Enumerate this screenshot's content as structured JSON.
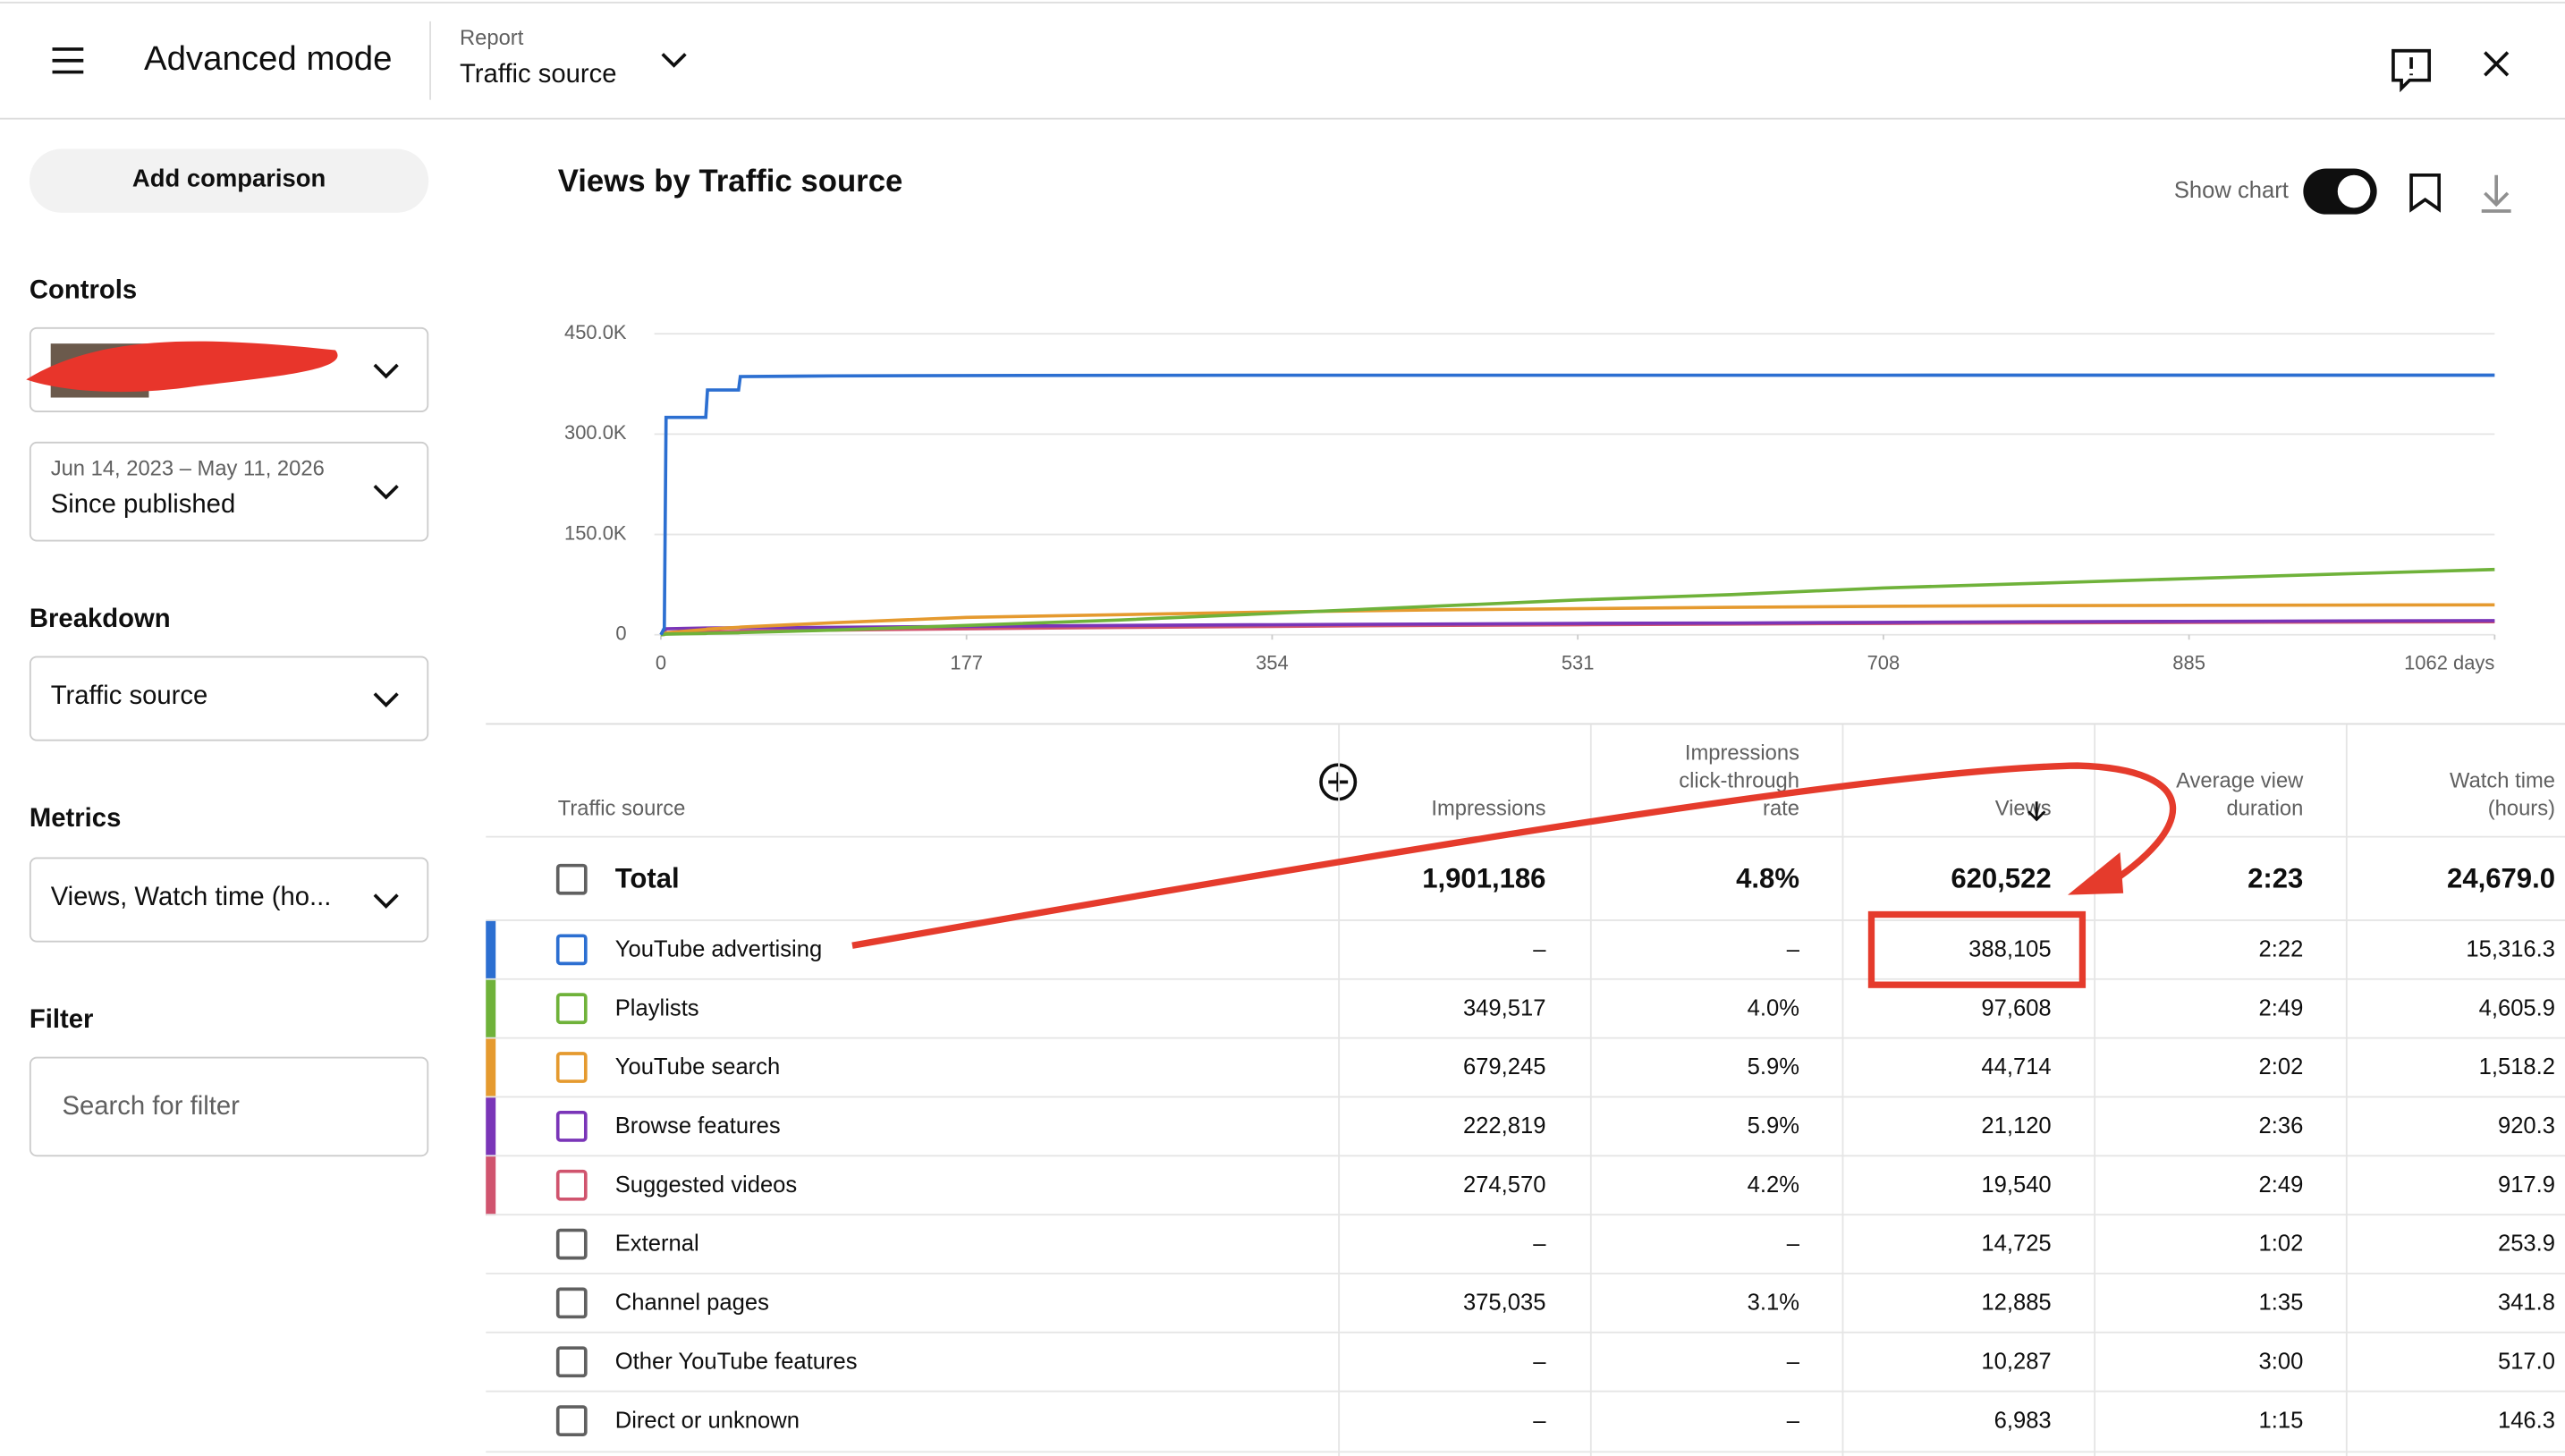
{
  "header": {
    "title": "Advanced mode",
    "report_label": "Report",
    "report_value": "Traffic source"
  },
  "sidebar": {
    "add_comparison": "Add comparison",
    "controls_label": "Controls",
    "date_range": "Jun 14, 2023 – May 11, 2026",
    "date_preset": "Since published",
    "breakdown_label": "Breakdown",
    "breakdown_value": "Traffic source",
    "metrics_label": "Metrics",
    "metrics_value": "Views, Watch time (ho...",
    "filter_label": "Filter",
    "filter_placeholder": "Search for filter"
  },
  "show_chart": "Show chart",
  "chart_data": {
    "type": "line",
    "title": "Views by Traffic source",
    "x": [
      0,
      2,
      3,
      26,
      27,
      45,
      46,
      100,
      177,
      265,
      354,
      442,
      531,
      620,
      708,
      797,
      885,
      974,
      1062
    ],
    "xlim": [
      0,
      1062
    ],
    "xticks": [
      0,
      177,
      354,
      531,
      708,
      885,
      {
        "value": 1062,
        "label": "1062 days"
      }
    ],
    "ylim": [
      0,
      450000
    ],
    "yticks": [
      {
        "value": 0,
        "label": "0"
      },
      {
        "value": 150000,
        "label": "150.0K"
      },
      {
        "value": 300000,
        "label": "300.0K"
      },
      {
        "value": 450000,
        "label": "450.0K"
      }
    ],
    "grid": true,
    "series": [
      {
        "name": "YouTube advertising",
        "color": "#2c6fd1",
        "values": [
          0,
          10000,
          325000,
          325000,
          366000,
          366000,
          386000,
          387000,
          387500,
          387800,
          388000,
          388000,
          388000,
          388050,
          388050,
          388100,
          388100,
          388100,
          388105
        ]
      },
      {
        "name": "Playlists",
        "color": "#6fb23a",
        "values": [
          0,
          500,
          1000,
          2000,
          2200,
          3000,
          3200,
          7000,
          14000,
          22000,
          32000,
          42000,
          52000,
          60000,
          70000,
          77000,
          84000,
          91000,
          97608
        ]
      },
      {
        "name": "YouTube search",
        "color": "#e59a2f",
        "values": [
          0,
          1000,
          3000,
          8000,
          8500,
          11000,
          11500,
          18000,
          26000,
          30000,
          34000,
          37000,
          39000,
          41000,
          42500,
          43500,
          44000,
          44400,
          44714
        ]
      },
      {
        "name": "Browse features",
        "color": "#7a35b8",
        "values": [
          0,
          5000,
          9000,
          10000,
          10000,
          10500,
          10500,
          11000,
          12500,
          14000,
          15000,
          16000,
          17000,
          17500,
          18500,
          19500,
          20000,
          20600,
          21120
        ]
      },
      {
        "name": "Suggested videos",
        "color": "#d0546e",
        "values": [
          0,
          1000,
          3000,
          4000,
          4200,
          5000,
          5200,
          7000,
          9000,
          11000,
          12500,
          14000,
          15000,
          16000,
          17000,
          17800,
          18500,
          19000,
          19540
        ]
      }
    ]
  },
  "table": {
    "headers": [
      [
        "Traffic source"
      ],
      [
        "Impressions"
      ],
      [
        "Impressions",
        "click-through",
        "rate"
      ],
      [
        "Views"
      ],
      [
        "Average view",
        "duration"
      ],
      [
        "Watch time",
        "(hours)"
      ]
    ],
    "total": [
      "Total",
      "1,901,186",
      "4.8%",
      "620,522",
      "2:23",
      "24,679.0"
    ],
    "rows": [
      {
        "color": "#2c6fd1",
        "cells": [
          "YouTube advertising",
          "–",
          "–",
          "388,105",
          "2:22",
          "15,316.3"
        ]
      },
      {
        "color": "#6fb23a",
        "cells": [
          "Playlists",
          "349,517",
          "4.0%",
          "97,608",
          "2:49",
          "4,605.9"
        ]
      },
      {
        "color": "#e59a2f",
        "cells": [
          "YouTube search",
          "679,245",
          "5.9%",
          "44,714",
          "2:02",
          "1,518.2"
        ]
      },
      {
        "color": "#7a35b8",
        "cells": [
          "Browse features",
          "222,819",
          "5.9%",
          "21,120",
          "2:36",
          "920.3"
        ]
      },
      {
        "color": "#d0546e",
        "cells": [
          "Suggested videos",
          "274,570",
          "4.2%",
          "19,540",
          "2:49",
          "917.9"
        ]
      },
      {
        "cells": [
          "External",
          "–",
          "–",
          "14,725",
          "1:02",
          "253.9"
        ]
      },
      {
        "cells": [
          "Channel pages",
          "375,035",
          "3.1%",
          "12,885",
          "1:35",
          "341.8"
        ]
      },
      {
        "cells": [
          "Other YouTube features",
          "–",
          "–",
          "10,287",
          "3:00",
          "517.0"
        ]
      },
      {
        "cells": [
          "Direct or unknown",
          "–",
          "–",
          "6,983",
          "1:15",
          "146.3"
        ]
      }
    ]
  }
}
